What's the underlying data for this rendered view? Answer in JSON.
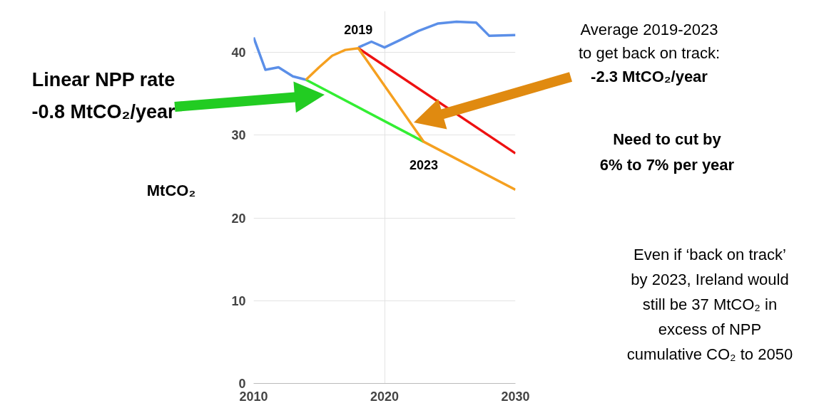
{
  "chart_data": {
    "type": "line",
    "ylabel": "MtCO₂",
    "xlim": [
      2010,
      2030
    ],
    "ylim": [
      0,
      45
    ],
    "xticks": [
      2010,
      2020,
      2030
    ],
    "yticks": [
      0,
      10,
      20,
      30,
      40
    ],
    "grid": true,
    "marker": "none",
    "line_style": "solid",
    "series": [
      {
        "color": "#5b8fe8",
        "x": [
          2010,
          2010.9,
          2011.9,
          2013,
          2014,
          2015,
          2016,
          2017,
          2018,
          2019,
          2020,
          2021.2,
          2022.6,
          2024.1,
          2025.5,
          2027,
          2028,
          2030
        ],
        "values": [
          41.8,
          37.9,
          38.2,
          37.1,
          36.7,
          null,
          null,
          null,
          40.6,
          41.3,
          40.6,
          41.5,
          42.6,
          43.5,
          43.7,
          43.6,
          42.0,
          42.1
        ]
      },
      {
        "color": "#ee1111",
        "x": [
          2018,
          2030
        ],
        "values": [
          40.5,
          27.8
        ]
      },
      {
        "color": "#33ee33",
        "x": [
          2014,
          2023
        ],
        "values": [
          36.7,
          29.2
        ]
      },
      {
        "color": "#f5a020",
        "x": [
          2014,
          2015,
          2016,
          2017,
          2018,
          2023,
          2030
        ],
        "values": [
          36.7,
          38.2,
          39.6,
          40.3,
          40.5,
          29.2,
          23.4
        ]
      }
    ],
    "annotations": [
      {
        "text": "2019",
        "x": 2018,
        "y": 40.5
      },
      {
        "text": "2023",
        "x": 2023,
        "y": 29.2
      },
      "Linear NPP rate\n-0.8 MtCO₂/year",
      "Average 2019-2023\nto get back on track:\n-2.3 MtCO₂/year",
      "Need to cut by\n6% to 7% per year",
      "Even if ‘back on track’\nby 2023, Ireland would\nstill be 37 MtCO₂ in\nexcess of NPP\ncumulative CO₂ to 2050"
    ]
  }
}
